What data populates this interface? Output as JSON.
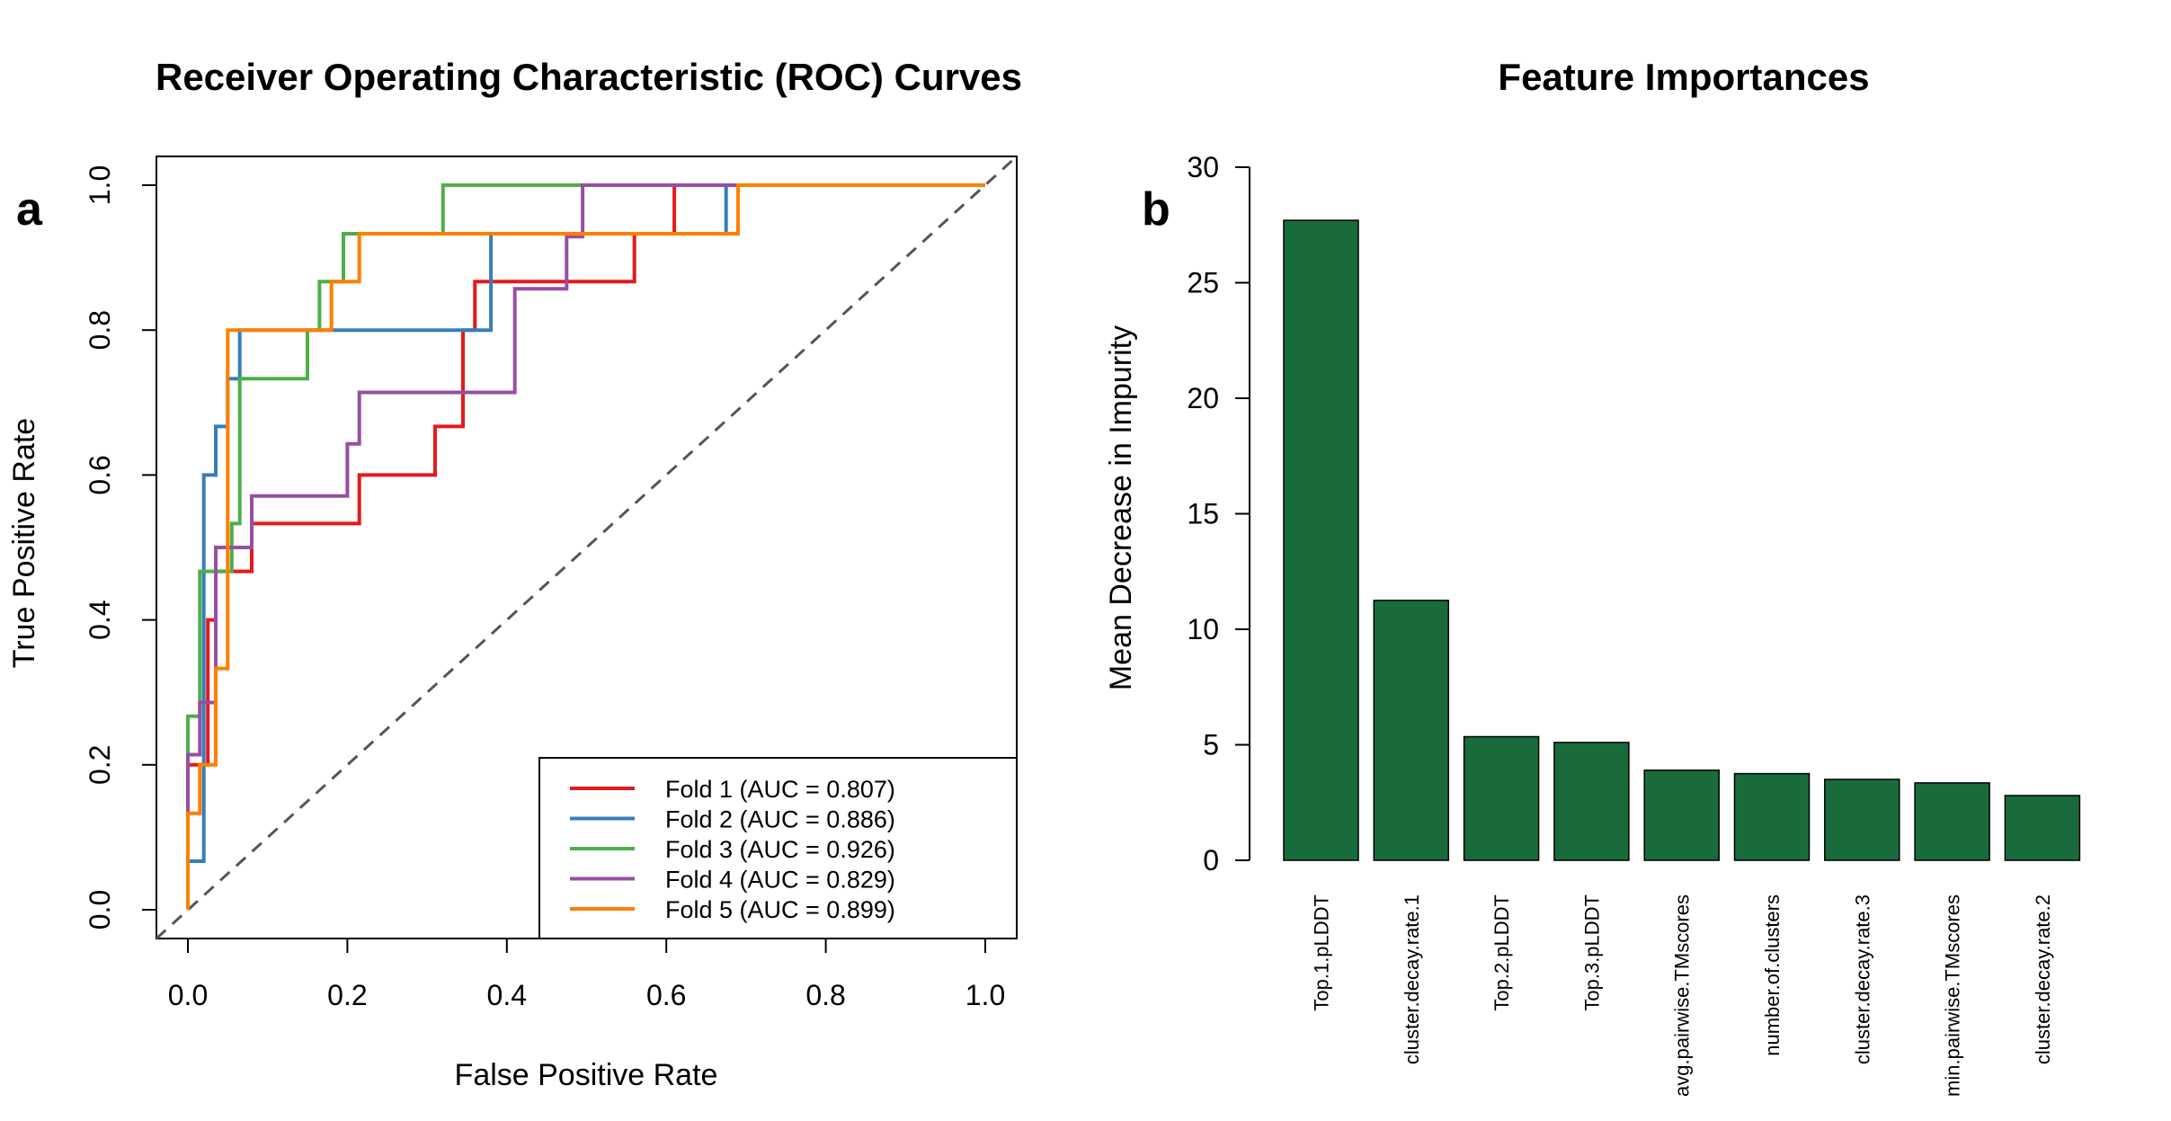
{
  "chart_data": [
    {
      "type": "line",
      "panel_label": "a",
      "title": "Receiver Operating Characteristic (ROC) Curves",
      "xlabel": "False Positive Rate",
      "ylabel": "True Positive Rate",
      "xlim": [
        0,
        1
      ],
      "ylim": [
        0,
        1
      ],
      "xticks": [
        "0.0",
        "0.2",
        "0.4",
        "0.6",
        "0.8",
        "1.0"
      ],
      "yticks": [
        "0.0",
        "0.2",
        "0.4",
        "0.6",
        "0.8",
        "1.0"
      ],
      "grid": false,
      "legend_position": "bottom-right",
      "reference_line": "diagonal dashed",
      "series": [
        {
          "name": "Fold 1 (AUC = 0.807)",
          "color": "#e41a1c",
          "points": [
            [
              0,
              0
            ],
            [
              0,
              0.2
            ],
            [
              0.025,
              0.2
            ],
            [
              0.025,
              0.4
            ],
            [
              0.035,
              0.4
            ],
            [
              0.035,
              0.467
            ],
            [
              0.08,
              0.467
            ],
            [
              0.08,
              0.533
            ],
            [
              0.215,
              0.533
            ],
            [
              0.215,
              0.6
            ],
            [
              0.31,
              0.6
            ],
            [
              0.31,
              0.667
            ],
            [
              0.345,
              0.667
            ],
            [
              0.345,
              0.8
            ],
            [
              0.36,
              0.8
            ],
            [
              0.36,
              0.867
            ],
            [
              0.56,
              0.867
            ],
            [
              0.56,
              0.933
            ],
            [
              0.61,
              0.933
            ],
            [
              0.61,
              1.0
            ],
            [
              1.0,
              1.0
            ]
          ]
        },
        {
          "name": "Fold 2 (AUC = 0.886)",
          "color": "#377eb8",
          "points": [
            [
              0,
              0
            ],
            [
              0,
              0.067
            ],
            [
              0.02,
              0.067
            ],
            [
              0.02,
              0.6
            ],
            [
              0.035,
              0.6
            ],
            [
              0.035,
              0.667
            ],
            [
              0.05,
              0.667
            ],
            [
              0.05,
              0.733
            ],
            [
              0.065,
              0.733
            ],
            [
              0.065,
              0.8
            ],
            [
              0.38,
              0.8
            ],
            [
              0.38,
              0.933
            ],
            [
              0.675,
              0.933
            ],
            [
              0.675,
              1.0
            ],
            [
              1.0,
              1.0
            ]
          ]
        },
        {
          "name": "Fold 3 (AUC = 0.926)",
          "color": "#4daf4a",
          "points": [
            [
              0,
              0
            ],
            [
              0,
              0.267
            ],
            [
              0.015,
              0.267
            ],
            [
              0.015,
              0.467
            ],
            [
              0.055,
              0.467
            ],
            [
              0.055,
              0.533
            ],
            [
              0.065,
              0.533
            ],
            [
              0.065,
              0.733
            ],
            [
              0.15,
              0.733
            ],
            [
              0.15,
              0.8
            ],
            [
              0.165,
              0.8
            ],
            [
              0.165,
              0.867
            ],
            [
              0.195,
              0.867
            ],
            [
              0.195,
              0.933
            ],
            [
              0.32,
              0.933
            ],
            [
              0.32,
              1.0
            ],
            [
              1.0,
              1.0
            ]
          ]
        },
        {
          "name": "Fold 4 (AUC = 0.829)",
          "color": "#984ea3",
          "points": [
            [
              0,
              0
            ],
            [
              0,
              0.214
            ],
            [
              0.015,
              0.214
            ],
            [
              0.015,
              0.286
            ],
            [
              0.035,
              0.286
            ],
            [
              0.035,
              0.5
            ],
            [
              0.08,
              0.5
            ],
            [
              0.08,
              0.571
            ],
            [
              0.2,
              0.571
            ],
            [
              0.2,
              0.643
            ],
            [
              0.215,
              0.643
            ],
            [
              0.215,
              0.714
            ],
            [
              0.41,
              0.714
            ],
            [
              0.41,
              0.857
            ],
            [
              0.475,
              0.857
            ],
            [
              0.475,
              0.929
            ],
            [
              0.495,
              0.929
            ],
            [
              0.495,
              1.0
            ],
            [
              1.0,
              1.0
            ]
          ]
        },
        {
          "name": "Fold 5 (AUC = 0.899)",
          "color": "#ff7f00",
          "points": [
            [
              0,
              0
            ],
            [
              0,
              0.133
            ],
            [
              0.015,
              0.133
            ],
            [
              0.015,
              0.2
            ],
            [
              0.035,
              0.2
            ],
            [
              0.035,
              0.333
            ],
            [
              0.05,
              0.333
            ],
            [
              0.05,
              0.8
            ],
            [
              0.18,
              0.8
            ],
            [
              0.18,
              0.867
            ],
            [
              0.215,
              0.867
            ],
            [
              0.215,
              0.933
            ],
            [
              0.69,
              0.933
            ],
            [
              0.69,
              1.0
            ],
            [
              1.0,
              1.0
            ]
          ]
        }
      ]
    },
    {
      "type": "bar",
      "panel_label": "b",
      "title": "Feature Importances",
      "xlabel": "",
      "ylabel": "Mean Decrease in Impurity",
      "ylim": [
        0,
        30
      ],
      "yticks": [
        "0",
        "5",
        "10",
        "15",
        "20",
        "25",
        "30"
      ],
      "grid": false,
      "bar_color": "#1a6b3c",
      "categories": [
        "Top.1.pLDDT",
        "cluster.decay.rate.1",
        "Top.2.pLDDT",
        "Top.3.pLDDT",
        "avg.pairwise.TMscores",
        "number.of.clusters",
        "cluster.decay.rate.3",
        "min.pairwise.TMscores",
        "cluster.decay.rate.2"
      ],
      "values": [
        27.7,
        11.25,
        5.35,
        5.1,
        3.9,
        3.75,
        3.5,
        3.35,
        2.8
      ]
    }
  ]
}
